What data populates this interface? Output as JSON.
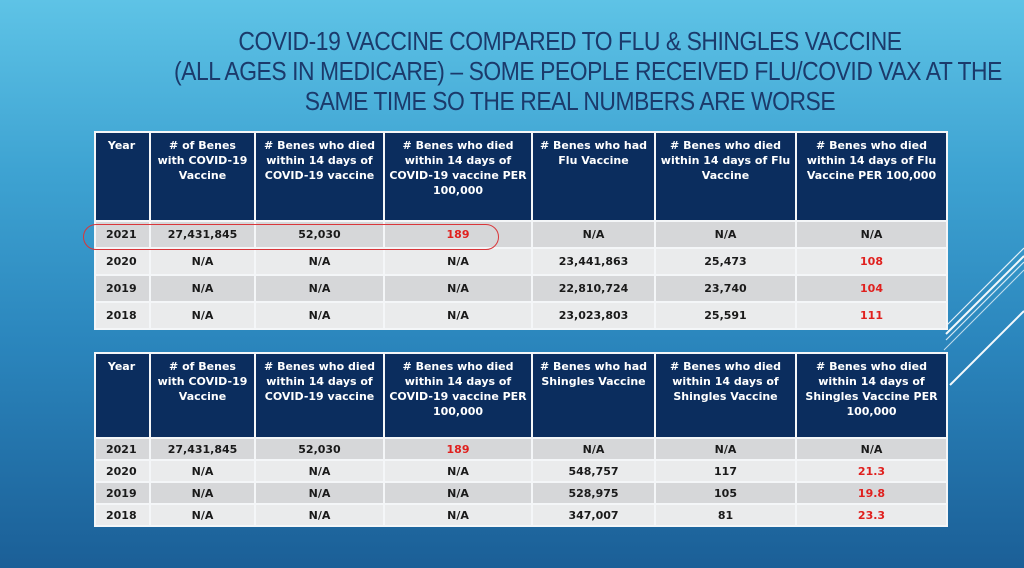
{
  "slide": {
    "title_lines": [
      "COVID-19 VACCINE COMPARED TO FLU & SHINGLES VACCINE",
      "(ALL AGES IN MEDICARE) – SOME PEOPLE RECEIVED FLU/COVID VAX AT THE",
      "SAME TIME SO THE REAL NUMBERS ARE WORSE"
    ],
    "colors": {
      "header_bg": "#0b2d5e",
      "title": "#1b3a6b",
      "highlight_value": "#e0201e",
      "circle": "#d9363a"
    }
  },
  "flu_table": {
    "headers": [
      "Year",
      "# of Benes with COVID-19 Vaccine",
      "# Benes who died within 14 days of COVID-19 vaccine",
      "# Benes who died within 14 days of COVID-19 vaccine PER 100,000",
      "# Benes who had Flu Vaccine",
      "# Benes who died within 14 days of Flu Vaccine",
      "# Benes who died within 14 days of Flu Vaccine PER 100,000"
    ],
    "rows": [
      [
        "2021",
        "27,431,845",
        "52,030",
        "189",
        "N/A",
        "N/A",
        "N/A"
      ],
      [
        "2020",
        "N/A",
        "N/A",
        "N/A",
        "23,441,863",
        "25,473",
        "108"
      ],
      [
        "2019",
        "N/A",
        "N/A",
        "N/A",
        "22,810,724",
        "23,740",
        "104"
      ],
      [
        "2018",
        "N/A",
        "N/A",
        "N/A",
        "23,023,803",
        "25,591",
        "111"
      ]
    ]
  },
  "shingles_table": {
    "headers": [
      "Year",
      "# of Benes with COVID-19 Vaccine",
      "# Benes who died within 14 days of COVID-19 vaccine",
      "# Benes who died within 14 days of COVID-19 vaccine PER 100,000",
      "# Benes who had Shingles Vaccine",
      "# Benes who died within 14 days of Shingles Vaccine",
      "# Benes who died within 14 days of Shingles Vaccine PER 100,000"
    ],
    "rows": [
      [
        "2021",
        "27,431,845",
        "52,030",
        "189",
        "N/A",
        "N/A",
        "N/A"
      ],
      [
        "2020",
        "N/A",
        "N/A",
        "N/A",
        "548,757",
        "117",
        "21.3"
      ],
      [
        "2019",
        "N/A",
        "N/A",
        "N/A",
        "528,975",
        "105",
        "19.8"
      ],
      [
        "2018",
        "N/A",
        "N/A",
        "N/A",
        "347,007",
        "81",
        "23.3"
      ]
    ]
  }
}
